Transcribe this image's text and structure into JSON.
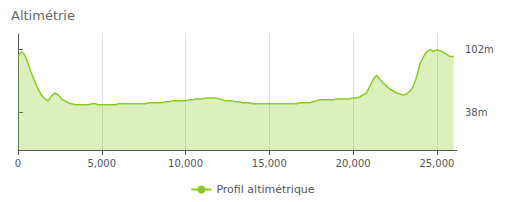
{
  "chart_data": {
    "type": "area",
    "title": "Altimétrie",
    "x": [
      0,
      200,
      400,
      600,
      800,
      1000,
      1200,
      1400,
      1600,
      1800,
      2000,
      2200,
      2400,
      2600,
      2800,
      3000,
      3200,
      3400,
      3600,
      3800,
      4000,
      4200,
      4400,
      4600,
      4800,
      5000,
      5200,
      5400,
      5600,
      5800,
      6000,
      6200,
      6400,
      6600,
      6800,
      7000,
      7200,
      7400,
      7600,
      7800,
      8000,
      8200,
      8400,
      8600,
      8800,
      9000,
      9200,
      9400,
      9600,
      9800,
      10000,
      10200,
      10400,
      10600,
      10800,
      11000,
      11200,
      11400,
      11600,
      11800,
      12000,
      12200,
      12400,
      12600,
      12800,
      13000,
      13200,
      13400,
      13600,
      13800,
      14000,
      14200,
      14400,
      14600,
      14800,
      15000,
      15200,
      15400,
      15600,
      15800,
      16000,
      16200,
      16400,
      16600,
      16800,
      17000,
      17200,
      17400,
      17600,
      17800,
      18000,
      18200,
      18400,
      18600,
      18800,
      19000,
      19200,
      19400,
      19600,
      19800,
      20000,
      20200,
      20400,
      20600,
      20800,
      21000,
      21200,
      21400,
      21600,
      21800,
      22000,
      22200,
      22400,
      22600,
      22800,
      23000,
      23200,
      23400,
      23600,
      23800,
      24000,
      24200,
      24400,
      24600,
      24800,
      25000,
      25200,
      25400,
      25600,
      25800,
      26000
    ],
    "series": [
      {
        "name": "Profil altimétrique",
        "color": "#88cc22",
        "values": [
          95,
          100,
          97,
          88,
          78,
          70,
          62,
          56,
          52,
          50,
          55,
          58,
          56,
          52,
          50,
          48,
          47,
          46,
          46,
          46,
          46,
          46,
          47,
          47,
          46,
          46,
          46,
          46,
          46,
          46,
          47,
          47,
          47,
          47,
          47,
          47,
          47,
          47,
          47,
          48,
          48,
          48,
          48,
          48,
          49,
          49,
          50,
          50,
          50,
          50,
          50,
          51,
          51,
          52,
          52,
          52,
          53,
          53,
          53,
          53,
          52,
          51,
          50,
          50,
          50,
          49,
          49,
          48,
          48,
          48,
          47,
          47,
          47,
          47,
          47,
          47,
          47,
          47,
          47,
          47,
          47,
          47,
          47,
          47,
          48,
          48,
          48,
          48,
          49,
          50,
          51,
          51,
          51,
          51,
          51,
          52,
          52,
          52,
          52,
          52,
          53,
          53,
          54,
          56,
          58,
          65,
          72,
          76,
          72,
          68,
          65,
          62,
          60,
          58,
          57,
          56,
          57,
          60,
          65,
          75,
          88,
          95,
          100,
          102,
          100,
          102,
          101,
          99,
          97,
          95,
          95
        ]
      }
    ],
    "xlim": [
      0,
      26200
    ],
    "xticks": [
      0,
      {
        "value": 5000,
        "label": "5,000"
      },
      {
        "value": 10000,
        "label": "10,000"
      },
      {
        "value": 15000,
        "label": "15,000"
      },
      {
        "value": 20000,
        "label": "20,000"
      },
      {
        "value": 25000,
        "label": "25,000"
      }
    ],
    "ylim": [
      0,
      118
    ],
    "yticks": [
      {
        "value": 38,
        "label": "38m"
      },
      {
        "value": 102,
        "label": "102m"
      }
    ],
    "grid": "x",
    "legend": "bottom"
  }
}
